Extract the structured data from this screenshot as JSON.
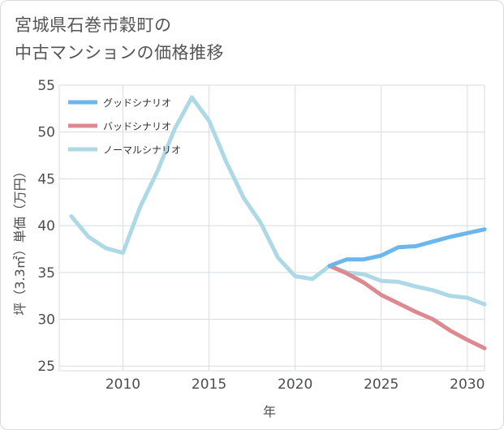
{
  "title_lines": [
    "宮城県石巻市穀町の",
    "中古マンションの価格推移"
  ],
  "chart_data": {
    "type": "line",
    "xlabel": "年",
    "ylabel": "坪（3.3㎡）単価（万円）",
    "xlim": [
      2006.3,
      2031
    ],
    "ylim": [
      24.5,
      55
    ],
    "xticks": [
      2010,
      2015,
      2020,
      2025,
      2030
    ],
    "yticks": [
      25,
      30,
      35,
      40,
      45,
      50,
      55
    ],
    "grid": true,
    "legend_position": "top-left",
    "series": [
      {
        "name": "グッドシナリオ",
        "color": "#6bb6ec",
        "x": [
          2022,
          2023,
          2024,
          2025,
          2026,
          2027,
          2028,
          2029,
          2030,
          2031
        ],
        "y": [
          35.7,
          36.4,
          36.4,
          36.8,
          37.7,
          37.8,
          38.3,
          38.8,
          39.2,
          39.6
        ]
      },
      {
        "name": "バッドシナリオ",
        "color": "#dc8a8f",
        "x": [
          2022,
          2023,
          2024,
          2025,
          2026,
          2027,
          2028,
          2029,
          2030,
          2031
        ],
        "y": [
          35.7,
          34.9,
          33.9,
          32.6,
          31.7,
          30.8,
          30.0,
          28.8,
          27.8,
          26.9
        ]
      },
      {
        "name": "ノーマルシナリオ",
        "color": "#add8e6",
        "x": [
          2007,
          2008,
          2009,
          2010,
          2011,
          2012,
          2013,
          2014,
          2015,
          2016,
          2017,
          2018,
          2019,
          2020,
          2021,
          2022,
          2023,
          2024,
          2025,
          2026,
          2027,
          2028,
          2029,
          2030,
          2031
        ],
        "y": [
          41.0,
          38.8,
          37.6,
          37.1,
          42.0,
          45.8,
          50.3,
          53.7,
          51.2,
          46.8,
          43.0,
          40.3,
          36.6,
          34.6,
          34.3,
          35.7,
          35.0,
          34.8,
          34.1,
          34.0,
          33.5,
          33.1,
          32.5,
          32.3,
          31.6
        ]
      }
    ]
  }
}
